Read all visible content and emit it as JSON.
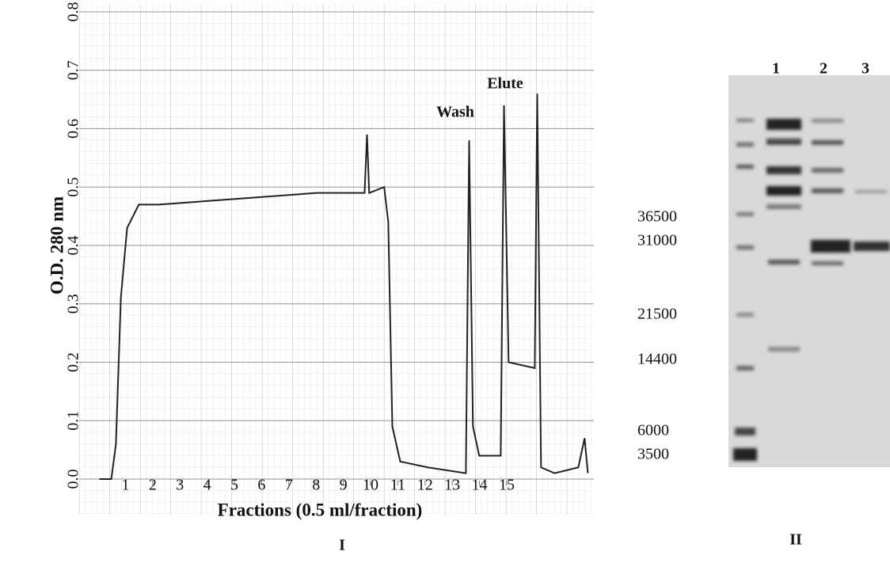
{
  "chart_data": {
    "type": "line",
    "panel_label": "I",
    "xlabel": "Fractions (0.5 ml/fraction)",
    "ylabel": "O.D. 280 nm",
    "annotations": [
      "Wash",
      "Elute"
    ],
    "xlim": [
      -0.7,
      18.2
    ],
    "ylim": [
      0,
      0.8
    ],
    "xticks": [
      1,
      2,
      3,
      4,
      5,
      6,
      7,
      8,
      9,
      10,
      11,
      12,
      13,
      14,
      15
    ],
    "yticks": [
      {
        "value": 0,
        "label": "0.0"
      },
      0.1,
      0.2,
      0.3,
      0.4,
      0.5,
      0.6,
      0.7,
      0.8
    ],
    "x": [
      0.04,
      0.48,
      0.65,
      0.83,
      1.06,
      1.49,
      2.22,
      5.13,
      8.03,
      9.78,
      9.87,
      9.95,
      10.5,
      10.65,
      10.8,
      11.09,
      12.1,
      13.5,
      13.62,
      13.76,
      13.99,
      14.78,
      14.9,
      15.07,
      16.03,
      16.12,
      16.26,
      16.76,
      17.63,
      17.86,
      17.98
    ],
    "series": [
      {
        "color": "#222222",
        "values": [
          0,
          0,
          0.06,
          0.31,
          0.43,
          0.47,
          0.47,
          0.48,
          0.49,
          0.49,
          0.59,
          0.49,
          0.5,
          0.44,
          0.09,
          0.03,
          0.02,
          0.01,
          0.58,
          0.09,
          0.04,
          0.04,
          0.64,
          0.2,
          0.19,
          0.66,
          0.02,
          0.01,
          0.02,
          0.07,
          0.01
        ]
      }
    ]
  },
  "gel": {
    "panel_label": "II",
    "lanes": [
      "1",
      "2",
      "3"
    ],
    "markers": [
      "36500",
      "31000",
      "21500",
      "14400",
      "6000",
      "3500"
    ]
  }
}
